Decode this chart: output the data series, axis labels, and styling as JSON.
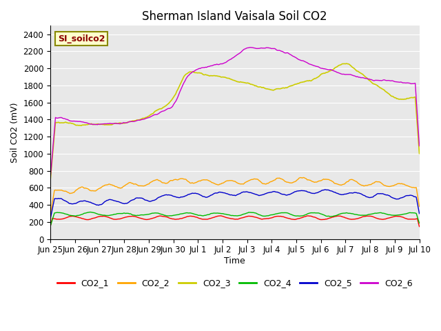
{
  "title": "Sherman Island Vaisala Soil CO2",
  "ylabel": "Soil CO2 (mV)",
  "xlabel": "Time",
  "ylim": [
    0,
    2500
  ],
  "yticks": [
    0,
    200,
    400,
    600,
    800,
    1000,
    1200,
    1400,
    1600,
    1800,
    2000,
    2200,
    2400
  ],
  "bg_color": "#e8e8e8",
  "legend_label": "SI_soilco2",
  "series_colors": {
    "CO2_1": "#ff0000",
    "CO2_2": "#ffa500",
    "CO2_3": "#cccc00",
    "CO2_4": "#00bb00",
    "CO2_5": "#0000cc",
    "CO2_6": "#cc00cc"
  },
  "legend_colors": [
    "#ff0000",
    "#ffa500",
    "#cccc00",
    "#00bb00",
    "#0000cc",
    "#cc00cc"
  ],
  "legend_labels": [
    "CO2_1",
    "CO2_2",
    "CO2_3",
    "CO2_4",
    "CO2_5",
    "CO2_6"
  ],
  "x_tick_labels": [
    "Jun 25",
    "Jun 26",
    "Jun 27",
    "Jun 28",
    "Jun 29",
    "Jun 30",
    "Jul 1",
    "Jul 2",
    "Jul 3",
    "Jul 4",
    "Jul 5",
    "Jul 6",
    "Jul 7",
    "Jul 8",
    "Jul 9",
    "Jul 10"
  ],
  "num_points": 360
}
